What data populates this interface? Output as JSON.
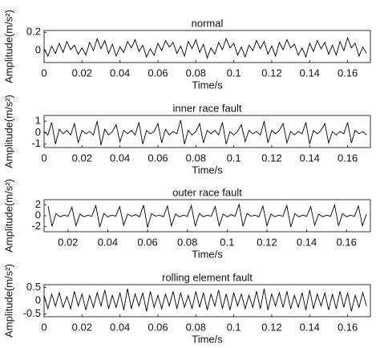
{
  "chart_data": [
    {
      "type": "line",
      "title": "normal",
      "xlabel": "Time/s",
      "ylabel": "Amplitude(m/s²)",
      "x": [
        0,
        0.002,
        0.004,
        0.006,
        0.008,
        0.01,
        0.012,
        0.014,
        0.016,
        0.018,
        0.02,
        0.022,
        0.024,
        0.026,
        0.028,
        0.03,
        0.032,
        0.034,
        0.036,
        0.038,
        0.04,
        0.042,
        0.044,
        0.046,
        0.048,
        0.05,
        0.052,
        0.054,
        0.056,
        0.058,
        0.06,
        0.062,
        0.064,
        0.066,
        0.068,
        0.07,
        0.072,
        0.074,
        0.076,
        0.078,
        0.08,
        0.082,
        0.084,
        0.086,
        0.088,
        0.09,
        0.092,
        0.094,
        0.096,
        0.098,
        0.1,
        0.102,
        0.104,
        0.106,
        0.108,
        0.11,
        0.112,
        0.114,
        0.116,
        0.118,
        0.12,
        0.122,
        0.124,
        0.126,
        0.128,
        0.13,
        0.132,
        0.134,
        0.136,
        0.138,
        0.14,
        0.142,
        0.144,
        0.146,
        0.148,
        0.15,
        0.152,
        0.154,
        0.156,
        0.158,
        0.16,
        0.162,
        0.164,
        0.166,
        0.168,
        0.17
      ],
      "series": [
        {
          "color": "#000000",
          "values": [
            0.02,
            -0.06,
            0.05,
            -0.03,
            0.08,
            -0.02,
            0.1,
            0.01,
            0.06,
            -0.04,
            0.03,
            -0.05,
            0.09,
            0.0,
            0.13,
            0.02,
            0.11,
            -0.03,
            0.07,
            -0.06,
            0.04,
            -0.02,
            0.1,
            0.03,
            0.12,
            -0.01,
            0.06,
            -0.07,
            0.02,
            -0.05,
            0.08,
            0.0,
            0.11,
            0.04,
            0.09,
            -0.03,
            0.05,
            -0.06,
            0.1,
            0.02,
            0.12,
            -0.02,
            0.07,
            -0.08,
            0.03,
            -0.04,
            0.09,
            0.01,
            0.13,
            0.03,
            0.08,
            -0.05,
            0.04,
            -0.07,
            0.06,
            0.0,
            0.11,
            0.02,
            0.1,
            -0.04,
            0.05,
            -0.06,
            0.09,
            0.01,
            0.12,
            0.03,
            0.07,
            -0.05,
            0.03,
            -0.07,
            0.08,
            -0.01,
            0.11,
            0.02,
            0.09,
            -0.04,
            0.06,
            -0.05,
            0.1,
            0.0,
            0.14,
            0.03,
            0.08,
            -0.06,
            0.04,
            -0.03
          ]
        }
      ],
      "xlim": [
        0,
        0.172
      ],
      "ylim": [
        -0.13,
        0.22
      ],
      "xticks": [
        0,
        0.02,
        0.04,
        0.06,
        0.08,
        0.1,
        0.12,
        0.14,
        0.16
      ],
      "yticks": [
        0,
        0.2
      ]
    },
    {
      "type": "line",
      "title": "inner race fault",
      "xlabel": "Time/s",
      "ylabel": "Amplitude(m/s²)",
      "x": [
        0,
        0.002,
        0.004,
        0.006,
        0.008,
        0.01,
        0.012,
        0.014,
        0.016,
        0.018,
        0.02,
        0.022,
        0.024,
        0.026,
        0.028,
        0.03,
        0.032,
        0.034,
        0.036,
        0.038,
        0.04,
        0.042,
        0.044,
        0.046,
        0.048,
        0.05,
        0.052,
        0.054,
        0.056,
        0.058,
        0.06,
        0.062,
        0.064,
        0.066,
        0.068,
        0.07,
        0.072,
        0.074,
        0.076,
        0.078,
        0.08,
        0.082,
        0.084,
        0.086,
        0.088,
        0.09,
        0.092,
        0.094,
        0.096,
        0.098,
        0.1,
        0.102,
        0.104,
        0.106,
        0.108,
        0.11,
        0.112,
        0.114,
        0.116,
        0.118,
        0.12,
        0.122,
        0.124,
        0.126,
        0.128,
        0.13,
        0.132,
        0.134,
        0.136,
        0.138,
        0.14,
        0.142,
        0.144,
        0.146,
        0.148,
        0.15,
        0.152,
        0.154,
        0.156,
        0.158,
        0.16,
        0.162,
        0.164,
        0.166,
        0.168,
        0.17
      ],
      "series": [
        {
          "color": "#000000",
          "values": [
            0.1,
            -0.2,
            0.9,
            -1.0,
            0.3,
            -0.1,
            0.2,
            -0.2,
            0.8,
            -0.9,
            0.2,
            -0.1,
            0.1,
            -0.2,
            1.0,
            -1.1,
            0.3,
            -0.2,
            0.1,
            0.7,
            -0.8,
            0.2,
            -0.1,
            0.2,
            -0.2,
            0.9,
            -1.0,
            0.2,
            -0.1,
            0.1,
            0.8,
            -0.9,
            0.3,
            -0.2,
            0.1,
            -0.1,
            1.1,
            -1.0,
            0.2,
            -0.2,
            0.1,
            0.8,
            -0.9,
            0.2,
            -0.1,
            0.2,
            -0.2,
            0.9,
            -1.0,
            0.1,
            -0.2,
            0.1,
            0.7,
            -0.8,
            0.2,
            -0.1,
            0.1,
            -0.2,
            1.0,
            -0.9,
            0.2,
            -0.1,
            0.2,
            0.8,
            -0.9,
            0.1,
            -0.2,
            0.1,
            -0.1,
            0.9,
            -1.0,
            0.2,
            -0.1,
            0.2,
            0.8,
            -0.9,
            0.1,
            -0.2,
            0.1,
            -0.1,
            0.9,
            -0.9,
            0.2,
            -0.1,
            0.1,
            -0.2
          ]
        }
      ],
      "xlim": [
        0,
        0.172
      ],
      "ylim": [
        -1.3,
        1.5
      ],
      "xticks": [
        0,
        0.02,
        0.04,
        0.06,
        0.08,
        0.1,
        0.12,
        0.14,
        0.16
      ],
      "yticks": [
        -1,
        0,
        1
      ]
    },
    {
      "type": "line",
      "title": "outer race fault",
      "xlabel": "Time/s",
      "ylabel": "Amplitude(m/s²)",
      "x": [
        0.01,
        0.012,
        0.014,
        0.016,
        0.018,
        0.02,
        0.022,
        0.024,
        0.026,
        0.028,
        0.03,
        0.032,
        0.034,
        0.036,
        0.038,
        0.04,
        0.042,
        0.044,
        0.046,
        0.048,
        0.05,
        0.052,
        0.054,
        0.056,
        0.058,
        0.06,
        0.062,
        0.064,
        0.066,
        0.068,
        0.07,
        0.072,
        0.074,
        0.076,
        0.078,
        0.08,
        0.082,
        0.084,
        0.086,
        0.088,
        0.09,
        0.092,
        0.094,
        0.096,
        0.098,
        0.1,
        0.102,
        0.104,
        0.106,
        0.108,
        0.11,
        0.112,
        0.114,
        0.116,
        0.118,
        0.12,
        0.122,
        0.124,
        0.126,
        0.128,
        0.13,
        0.132,
        0.134,
        0.136,
        0.138,
        0.14,
        0.142,
        0.144,
        0.146,
        0.148,
        0.15,
        0.152,
        0.154,
        0.156,
        0.158,
        0.16,
        0.162,
        0.164,
        0.166,
        0.168,
        0.17
      ],
      "series": [
        {
          "color": "#000000",
          "values": [
            1.8,
            -2.0,
            0.4,
            -0.2,
            0.1,
            -0.1,
            1.6,
            -1.9,
            0.3,
            -0.2,
            0.1,
            -0.1,
            1.9,
            -2.1,
            0.4,
            -0.2,
            0.1,
            -0.1,
            1.7,
            -1.8,
            0.3,
            -0.1,
            0.2,
            -0.2,
            2.0,
            -2.2,
            0.4,
            -0.1,
            0.1,
            -0.2,
            1.8,
            -1.9,
            0.3,
            -0.2,
            0.1,
            -0.1,
            1.9,
            -2.0,
            0.4,
            -0.2,
            0.1,
            -0.1,
            1.7,
            -1.9,
            0.3,
            -0.2,
            0.2,
            -0.1,
            2.1,
            -2.0,
            0.4,
            -0.1,
            0.1,
            -0.2,
            1.8,
            -1.9,
            0.3,
            -0.2,
            0.1,
            -0.1,
            1.9,
            -2.1,
            0.4,
            -0.2,
            0.1,
            -0.1,
            1.7,
            -1.8,
            0.3,
            -0.2,
            0.1,
            -0.1,
            2.0,
            -1.9,
            0.4,
            -0.2,
            0.1,
            -0.1,
            1.8,
            -1.9,
            0.3
          ]
        }
      ],
      "xlim": [
        0.008,
        0.172
      ],
      "ylim": [
        -3,
        3
      ],
      "xticks": [
        0.02,
        0.04,
        0.06,
        0.08,
        0.1,
        0.12,
        0.14,
        0.16
      ],
      "yticks": [
        -2,
        0,
        2
      ]
    },
    {
      "type": "line",
      "title": "rolling element fault",
      "xlabel": "Time/s",
      "ylabel": "Amplitude(m/s²)",
      "x": [
        0,
        0.002,
        0.004,
        0.006,
        0.008,
        0.01,
        0.012,
        0.014,
        0.016,
        0.018,
        0.02,
        0.022,
        0.024,
        0.026,
        0.028,
        0.03,
        0.032,
        0.034,
        0.036,
        0.038,
        0.04,
        0.042,
        0.044,
        0.046,
        0.048,
        0.05,
        0.052,
        0.054,
        0.056,
        0.058,
        0.06,
        0.062,
        0.064,
        0.066,
        0.068,
        0.07,
        0.072,
        0.074,
        0.076,
        0.078,
        0.08,
        0.082,
        0.084,
        0.086,
        0.088,
        0.09,
        0.092,
        0.094,
        0.096,
        0.098,
        0.1,
        0.102,
        0.104,
        0.106,
        0.108,
        0.11,
        0.112,
        0.114,
        0.116,
        0.118,
        0.12,
        0.122,
        0.124,
        0.126,
        0.128,
        0.13,
        0.132,
        0.134,
        0.136,
        0.138,
        0.14,
        0.142,
        0.144,
        0.146,
        0.148,
        0.15,
        0.152,
        0.154,
        0.156,
        0.158,
        0.16,
        0.162,
        0.164,
        0.166,
        0.168,
        0.17
      ],
      "series": [
        {
          "color": "#000000",
          "values": [
            0.2,
            -0.3,
            0.25,
            -0.2,
            0.3,
            -0.25,
            0.15,
            -0.3,
            0.35,
            -0.2,
            0.25,
            -0.35,
            0.2,
            -0.25,
            0.3,
            -0.2,
            0.4,
            -0.3,
            0.2,
            -0.25,
            0.3,
            -0.35,
            0.45,
            -0.3,
            0.25,
            -0.2,
            0.3,
            -0.4,
            0.35,
            -0.25,
            0.2,
            -0.3,
            0.25,
            -0.2,
            0.35,
            -0.3,
            0.3,
            -0.25,
            0.2,
            -0.3,
            0.35,
            -0.25,
            0.3,
            -0.35,
            0.25,
            -0.2,
            0.4,
            -0.3,
            0.25,
            -0.35,
            0.3,
            -0.2,
            0.25,
            -0.3,
            0.2,
            -0.25,
            0.35,
            -0.3,
            0.45,
            -0.35,
            0.25,
            -0.2,
            0.3,
            -0.25,
            0.35,
            -0.3,
            0.2,
            -0.25,
            0.3,
            -0.35,
            0.4,
            -0.3,
            0.25,
            -0.2,
            0.3,
            -0.35,
            0.25,
            -0.3,
            0.35,
            -0.25,
            0.3,
            -0.4,
            0.2,
            -0.25,
            0.3,
            -0.2
          ]
        }
      ],
      "xlim": [
        0,
        0.172
      ],
      "ylim": [
        -0.6,
        0.6
      ],
      "xticks": [
        0,
        0.02,
        0.04,
        0.06,
        0.08,
        0.1,
        0.12,
        0.14,
        0.16
      ],
      "yticks": [
        -0.5,
        0,
        0.5
      ]
    }
  ]
}
